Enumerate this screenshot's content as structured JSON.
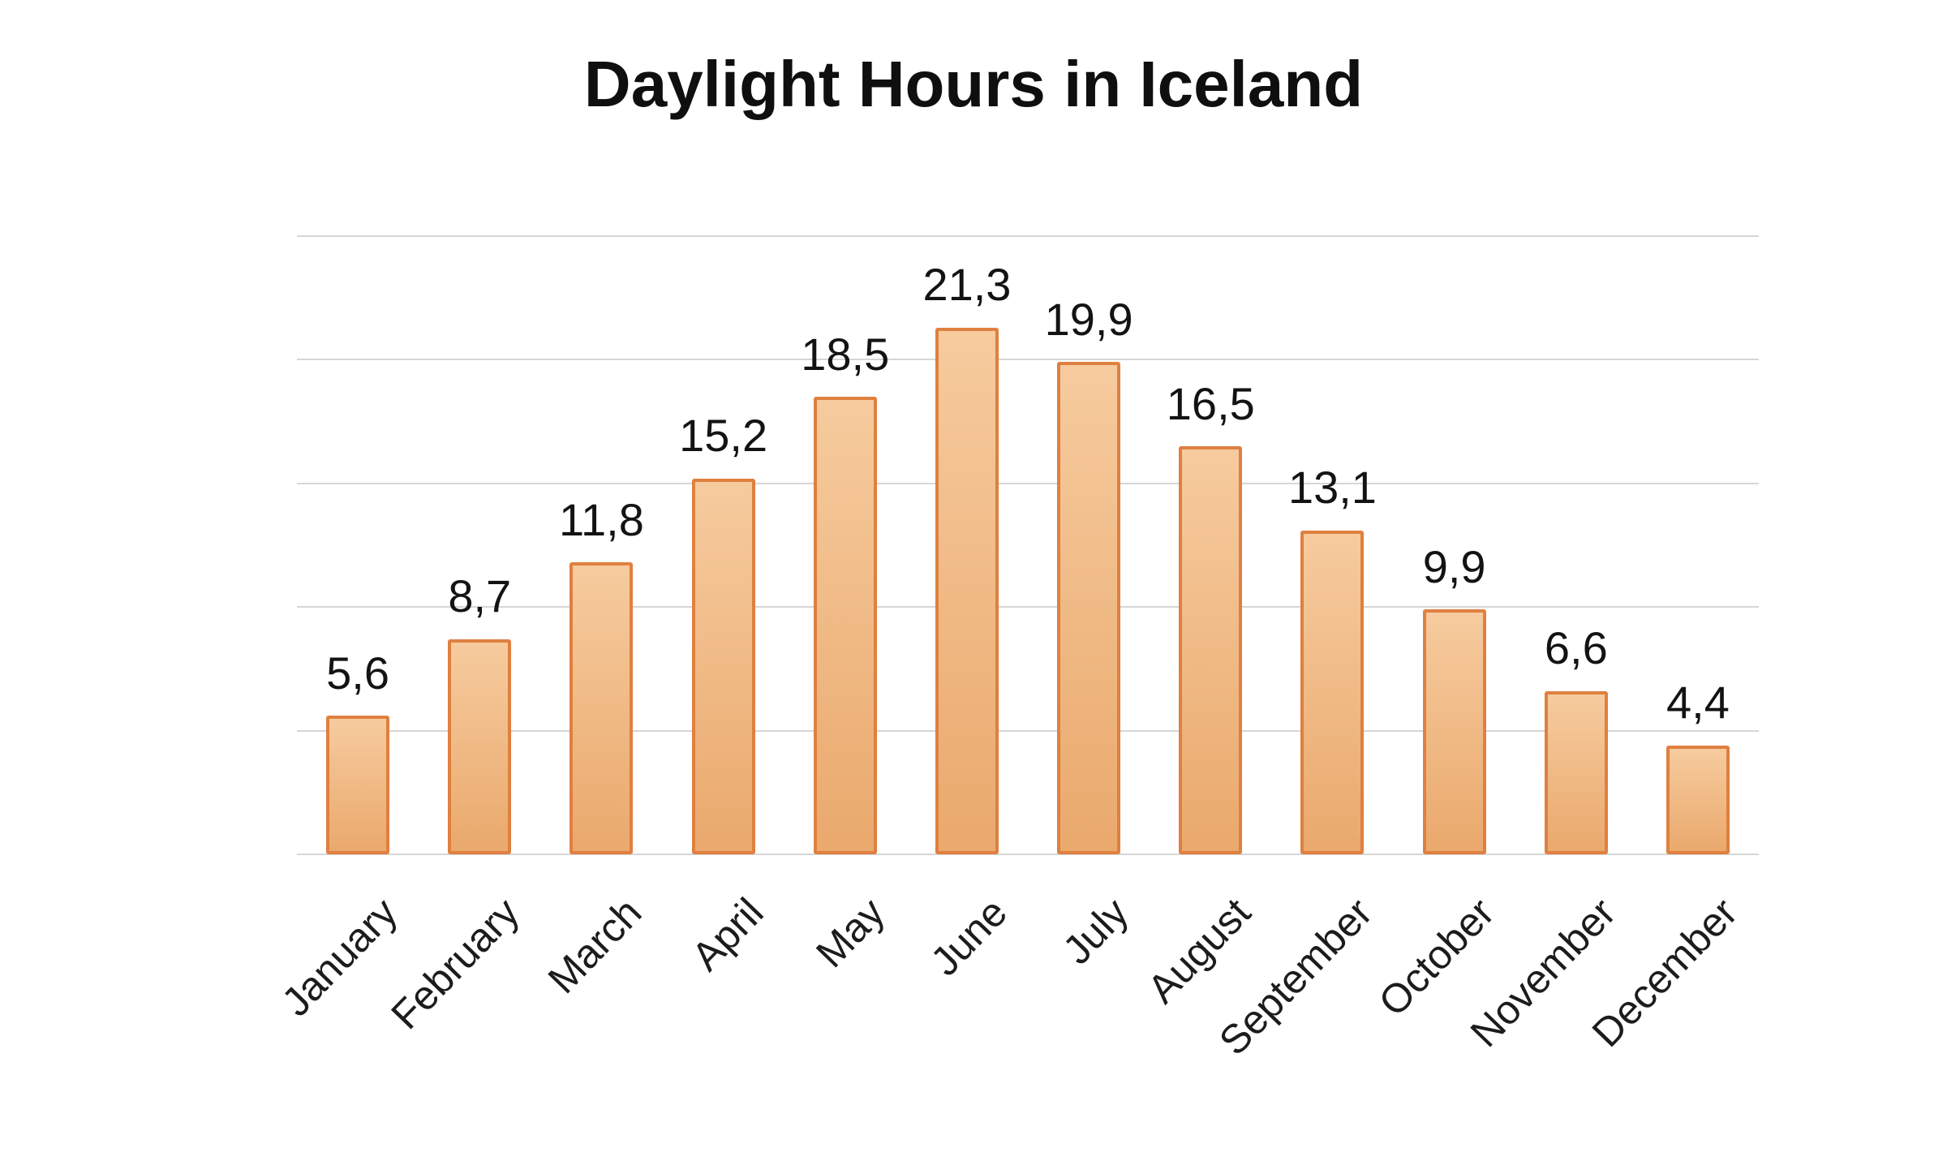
{
  "chart_data": {
    "type": "bar",
    "title": "Daylight Hours in Iceland",
    "categories": [
      "January",
      "February",
      "March",
      "April",
      "May",
      "June",
      "July",
      "August",
      "September",
      "October",
      "November",
      "December"
    ],
    "values": [
      5.6,
      8.7,
      11.8,
      15.2,
      18.5,
      21.3,
      19.9,
      16.5,
      13.1,
      9.9,
      6.6,
      4.4
    ],
    "value_labels": [
      "5,6",
      "8,7",
      "11,8",
      "15,2",
      "18,5",
      "21,3",
      "19,9",
      "16,5",
      "13,1",
      "9,9",
      "6,6",
      "4,4"
    ],
    "decimal_separator": ",",
    "xlabel": "",
    "ylabel": "",
    "ylim": [
      0,
      25
    ],
    "gridline_step": 5,
    "grid": true,
    "legend": "none",
    "x_label_rotation_deg": -46,
    "colors": {
      "background": "#ffffff",
      "bar_fill_top": "#f6cb9e",
      "bar_fill_bottom": "#eaa96d",
      "bar_border": "#df8040",
      "gridline": "#d6d6d6",
      "title_text": "#0f0f0f",
      "value_text": "#131313",
      "axis_text": "#1c1c1c"
    }
  }
}
